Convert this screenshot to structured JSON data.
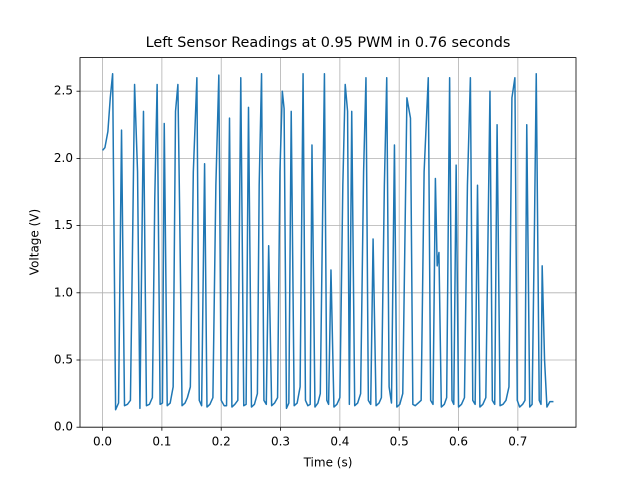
{
  "chart_data": {
    "type": "line",
    "title": "Left Sensor Readings at 0.95 PWM in 0.76 seconds",
    "x_label": "Time (s)",
    "y_label": "Voltage (V)",
    "x": [
      0,
      0.004,
      0.009,
      0.013,
      0.017,
      0.022,
      0.027,
      0.032,
      0.037,
      0.042,
      0.047,
      0.051,
      0.054,
      0.059,
      0.063,
      0.069,
      0.074,
      0.079,
      0.084,
      0.088,
      0.092,
      0.097,
      0.101,
      0.104,
      0.109,
      0.114,
      0.119,
      0.123,
      0.127,
      0.13,
      0.134,
      0.139,
      0.143,
      0.148,
      0.153,
      0.159,
      0.163,
      0.167,
      0.172,
      0.176,
      0.181,
      0.186,
      0.191,
      0.196,
      0.2,
      0.205,
      0.209,
      0.214,
      0.218,
      0.223,
      0.228,
      0.233,
      0.238,
      0.242,
      0.246,
      0.251,
      0.256,
      0.261,
      0.264,
      0.268,
      0.272,
      0.276,
      0.28,
      0.285,
      0.29,
      0.295,
      0.299,
      0.303,
      0.306,
      0.31,
      0.314,
      0.318,
      0.323,
      0.328,
      0.333,
      0.338,
      0.342,
      0.346,
      0.35,
      0.353,
      0.358,
      0.363,
      0.367,
      0.374,
      0.378,
      0.381,
      0.385,
      0.39,
      0.395,
      0.4,
      0.405,
      0.409,
      0.413,
      0.416,
      0.42,
      0.425,
      0.43,
      0.435,
      0.44,
      0.444,
      0.448,
      0.452,
      0.456,
      0.461,
      0.466,
      0.47,
      0.475,
      0.479,
      0.483,
      0.487,
      0.492,
      0.496,
      0.501,
      0.506,
      0.513,
      0.519,
      0.523,
      0.527,
      0.532,
      0.537,
      0.542,
      0.549,
      0.553,
      0.557,
      0.561,
      0.564,
      0.567,
      0.571,
      0.576,
      0.58,
      0.585,
      0.589,
      0.592,
      0.596,
      0.6,
      0.605,
      0.61,
      0.615,
      0.62,
      0.624,
      0.628,
      0.632,
      0.636,
      0.641,
      0.646,
      0.653,
      0.657,
      0.661,
      0.665,
      0.67,
      0.675,
      0.68,
      0.685,
      0.69,
      0.695,
      0.699,
      0.703,
      0.708,
      0.712,
      0.715,
      0.72,
      0.724,
      0.728,
      0.731,
      0.736,
      0.739,
      0.741,
      0.745,
      0.749,
      0.754,
      0.76
    ],
    "series": [
      {
        "color": "#1f77b4",
        "values": [
          2.06,
          2.08,
          2.2,
          2.45,
          2.63,
          0.13,
          0.18,
          2.21,
          0.16,
          0.17,
          0.2,
          1.5,
          2.55,
          1.9,
          0.14,
          2.35,
          0.16,
          0.17,
          0.22,
          1.7,
          2.55,
          0.17,
          0.18,
          2.26,
          0.16,
          0.18,
          0.3,
          2.35,
          2.55,
          1.6,
          0.16,
          0.18,
          0.22,
          0.3,
          1.9,
          2.6,
          0.2,
          0.16,
          1.96,
          0.15,
          0.17,
          0.22,
          1.8,
          2.62,
          0.2,
          0.16,
          0.16,
          2.3,
          0.15,
          0.17,
          0.2,
          2.6,
          0.16,
          0.17,
          2.38,
          0.15,
          0.17,
          0.25,
          1.8,
          2.63,
          0.2,
          0.17,
          1.35,
          0.16,
          0.18,
          0.22,
          1.9,
          2.5,
          2.37,
          0.14,
          0.18,
          2.35,
          0.16,
          0.18,
          0.3,
          2.63,
          0.2,
          0.16,
          0.17,
          2.1,
          0.15,
          0.18,
          0.25,
          2.63,
          0.2,
          0.17,
          1.17,
          0.15,
          0.17,
          0.22,
          1.8,
          2.55,
          2.35,
          0.17,
          2.35,
          0.16,
          0.18,
          0.25,
          1.9,
          2.6,
          0.2,
          0.17,
          1.4,
          0.16,
          0.18,
          0.22,
          1.8,
          2.6,
          0.3,
          0.18,
          2.1,
          0.15,
          0.17,
          0.25,
          2.45,
          2.3,
          0.17,
          0.16,
          0.18,
          0.2,
          1.9,
          2.6,
          0.2,
          0.17,
          1.85,
          1.2,
          1.3,
          0.15,
          0.17,
          0.22,
          2.6,
          0.2,
          0.17,
          1.95,
          0.15,
          0.17,
          0.22,
          1.8,
          2.6,
          0.2,
          0.17,
          1.8,
          0.15,
          0.17,
          0.22,
          2.5,
          0.2,
          0.17,
          2.25,
          0.16,
          0.17,
          0.2,
          0.3,
          2.45,
          2.6,
          0.2,
          0.15,
          0.17,
          0.2,
          2.25,
          0.15,
          0.17,
          1.5,
          2.63,
          0.2,
          0.17,
          1.2,
          0.5,
          0.15,
          0.19,
          0.19
        ]
      }
    ],
    "xlim": [
      -0.038,
      0.798
    ],
    "xticks": [
      {
        "value": 0,
        "label": "0.0"
      },
      0.1,
      0.2,
      0.3,
      0.4,
      0.5,
      0.6,
      0.7
    ],
    "ylim": [
      0,
      2.75
    ],
    "yticks": [
      {
        "value": 0,
        "label": "0.0"
      },
      0.5,
      {
        "value": 1,
        "label": "1.0"
      },
      1.5,
      {
        "value": 2,
        "label": "2.0"
      },
      2.5
    ],
    "grid": true
  }
}
